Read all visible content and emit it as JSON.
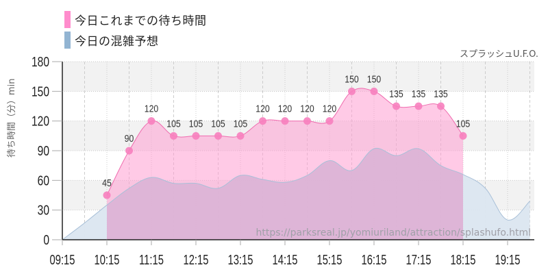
{
  "legend": [
    {
      "label": "今日これまでの待ち時間",
      "color": "#ff8ccc"
    },
    {
      "label": "今日の混雑予想",
      "color": "#92b4d2"
    }
  ],
  "attraction_name": "スプラッシュU.F.O.",
  "watermark": "https://parksreal.jp/yomiuriland/attraction/splashufo.html",
  "colors": {
    "actual_fill": "#ffc4e4",
    "actual_line": "#f06aae",
    "actual_marker": "#f77fbe",
    "forecast_fill": "#dbe6f0",
    "forecast_line": "#a9c0d8",
    "overlap_fill": "#dcbcda",
    "band": "#f2f2f2"
  },
  "chart_data": {
    "type": "area",
    "title": "",
    "xlabel": "",
    "ylabel": "待ち時間（分）min",
    "ylim": [
      0,
      180
    ],
    "yticks": [
      0,
      30,
      60,
      90,
      120,
      150,
      180
    ],
    "xticks": [
      "09:15",
      "10:15",
      "11:15",
      "12:15",
      "13:15",
      "14:15",
      "15:15",
      "16:15",
      "17:15",
      "18:15",
      "19:15"
    ],
    "grid": true,
    "legend_position": "top-left",
    "series": [
      {
        "name": "今日これまでの待ち時間",
        "type": "area+markers",
        "x": [
          "10:15",
          "10:45",
          "11:15",
          "11:45",
          "12:15",
          "12:45",
          "13:15",
          "13:45",
          "14:15",
          "14:45",
          "15:15",
          "15:45",
          "16:15",
          "16:45",
          "17:15",
          "17:45",
          "18:15"
        ],
        "values": [
          45,
          90,
          120,
          105,
          105,
          105,
          105,
          120,
          120,
          120,
          120,
          150,
          150,
          135,
          135,
          135,
          105
        ]
      },
      {
        "name": "今日の混雑予想",
        "type": "area",
        "x": [
          "09:15",
          "09:45",
          "10:15",
          "10:45",
          "11:15",
          "11:45",
          "12:15",
          "12:45",
          "13:15",
          "13:45",
          "14:15",
          "14:45",
          "15:15",
          "15:45",
          "16:15",
          "16:45",
          "17:15",
          "17:45",
          "18:15",
          "18:45",
          "19:15",
          "19:45"
        ],
        "values": [
          0,
          17,
          35,
          52,
          63,
          57,
          57,
          52,
          65,
          61,
          58,
          65,
          80,
          70,
          92,
          85,
          92,
          75,
          66,
          52,
          20,
          39
        ]
      }
    ]
  }
}
